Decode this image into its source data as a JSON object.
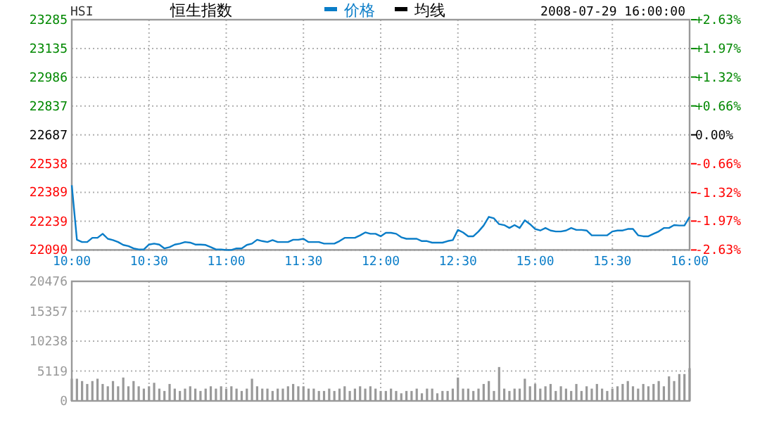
{
  "chart_data": [
    {
      "type": "line",
      "title": "HSI",
      "subtitle": "恒生指数",
      "annotations": [
        "2008-07-29 16:00:00"
      ],
      "legend": "top",
      "grid": true,
      "line_style": "solid",
      "categories": [
        "10:00",
        null,
        null,
        null,
        null,
        null,
        null,
        null,
        null,
        null,
        null,
        null,
        null,
        null,
        null,
        "10:30",
        null,
        null,
        null,
        null,
        null,
        null,
        null,
        null,
        null,
        null,
        null,
        null,
        null,
        null,
        "11:00",
        null,
        null,
        null,
        null,
        null,
        null,
        null,
        null,
        null,
        null,
        null,
        null,
        null,
        null,
        "11:30",
        null,
        null,
        null,
        null,
        null,
        null,
        null,
        null,
        null,
        null,
        null,
        null,
        null,
        null,
        "12:00",
        null,
        null,
        null,
        null,
        null,
        null,
        null,
        null,
        null,
        null,
        null,
        null,
        null,
        null,
        "12:30",
        null,
        null,
        null,
        null,
        null,
        null,
        null,
        null,
        null,
        null,
        null,
        null,
        null,
        null,
        "15:00",
        null,
        null,
        null,
        null,
        null,
        null,
        null,
        null,
        null,
        null,
        null,
        null,
        null,
        null,
        "15:30",
        null,
        null,
        null,
        null,
        null,
        null,
        null,
        null,
        null,
        null,
        null,
        null,
        null,
        null,
        "16:00"
      ],
      "series": [
        {
          "name": "价格",
          "color": "#0a7dc8",
          "values": [
            22426,
            22143,
            22131,
            22131,
            22153,
            22153,
            22174,
            22148,
            22141,
            22131,
            22116,
            22110,
            22098,
            22093,
            22093,
            22118,
            22123,
            22118,
            22098,
            22105,
            22118,
            22123,
            22131,
            22128,
            22118,
            22118,
            22116,
            22105,
            22093,
            22093,
            22090,
            22090,
            22098,
            22098,
            22116,
            22123,
            22143,
            22136,
            22131,
            22141,
            22131,
            22131,
            22131,
            22143,
            22143,
            22148,
            22131,
            22131,
            22131,
            22123,
            22123,
            22123,
            22136,
            22153,
            22153,
            22153,
            22166,
            22181,
            22174,
            22174,
            22161,
            22179,
            22179,
            22174,
            22156,
            22148,
            22148,
            22148,
            22136,
            22136,
            22128,
            22128,
            22128,
            22136,
            22141,
            22194,
            22181,
            22161,
            22161,
            22186,
            22217,
            22262,
            22254,
            22224,
            22219,
            22204,
            22219,
            22204,
            22244,
            22224,
            22199,
            22191,
            22204,
            22191,
            22186,
            22186,
            22191,
            22204,
            22194,
            22194,
            22191,
            22166,
            22166,
            22166,
            22166,
            22186,
            22191,
            22191,
            22199,
            22199,
            22166,
            22161,
            22161,
            22174,
            22186,
            22204,
            22204,
            22219,
            22217,
            22217,
            22262
          ]
        },
        {
          "name": "均线",
          "color": "#000000",
          "values": [
            null,
            null,
            null,
            null,
            null,
            null,
            null,
            null,
            null,
            null,
            null,
            null,
            null,
            null,
            null,
            null,
            null,
            null,
            null,
            null,
            null,
            null,
            null,
            null,
            null,
            null,
            null,
            null,
            null,
            null,
            null,
            null,
            null,
            null,
            null,
            null,
            null,
            null,
            null,
            null,
            null,
            null,
            null,
            null,
            null,
            null,
            null,
            null,
            null,
            null,
            null,
            null,
            null,
            null,
            null,
            null,
            null,
            null,
            null,
            null,
            null,
            null,
            null,
            null,
            null,
            null,
            null,
            null,
            null,
            null,
            null,
            null,
            null,
            null,
            null,
            null,
            null,
            null,
            null,
            null,
            null,
            null,
            null,
            null,
            null,
            null,
            null,
            null,
            null,
            null,
            null,
            null,
            null,
            null,
            null,
            null,
            null,
            null,
            null,
            null,
            null,
            null,
            null,
            null,
            null,
            null,
            null,
            null,
            null,
            null,
            null,
            null,
            null,
            null,
            null,
            null,
            null,
            null,
            null,
            null,
            null
          ]
        }
      ],
      "ylim": [
        22090,
        23285
      ],
      "yticks": [
        22090,
        22239,
        22389,
        22538,
        22687,
        22837,
        22986,
        23135,
        23285
      ],
      "y2lim": [
        -2.63,
        2.63
      ],
      "y2ticks": [
        {
          "value": -2.63,
          "label": "-2.63%"
        },
        {
          "value": -1.97,
          "label": "-1.97%"
        },
        {
          "value": -1.32,
          "label": "-1.32%"
        },
        {
          "value": -0.66,
          "label": "-0.66%"
        },
        {
          "value": 0,
          "label": "0.00%"
        },
        {
          "value": 0.66,
          "label": "+0.66%"
        },
        {
          "value": 1.32,
          "label": "+1.32%"
        },
        {
          "value": 1.97,
          "label": "+1.97%"
        },
        {
          "value": 2.63,
          "label": "+2.63%"
        }
      ]
    },
    {
      "type": "bar",
      "color": "#999999",
      "grid": true,
      "tick_labels": "y",
      "categories": [
        null,
        null,
        null,
        null,
        null,
        null,
        null,
        null,
        null,
        null,
        null,
        null,
        null,
        null,
        null,
        null,
        null,
        null,
        null,
        null,
        null,
        null,
        null,
        null,
        null,
        null,
        null,
        null,
        null,
        null,
        null,
        null,
        null,
        null,
        null,
        null,
        null,
        null,
        null,
        null,
        null,
        null,
        null,
        null,
        null,
        null,
        null,
        null,
        null,
        null,
        null,
        null,
        null,
        null,
        null,
        null,
        null,
        null,
        null,
        null,
        null,
        null,
        null,
        null,
        null,
        null,
        null,
        null,
        null,
        null,
        null,
        null,
        null,
        null,
        null,
        null,
        null,
        null,
        null,
        null,
        null,
        null,
        null,
        null,
        null,
        null,
        null,
        null,
        null,
        null,
        null,
        null,
        null,
        null,
        null,
        null,
        null,
        null,
        null,
        null,
        null,
        null,
        null,
        null,
        null,
        null,
        null,
        null,
        null,
        null,
        null,
        null,
        null,
        null,
        null,
        null,
        null,
        null,
        null,
        null,
        null
      ],
      "values": [
        3800,
        3800,
        3400,
        2900,
        3400,
        3800,
        2900,
        2500,
        3400,
        2500,
        4000,
        2500,
        3400,
        2500,
        2100,
        2500,
        3100,
        2100,
        1700,
        2900,
        2100,
        1700,
        2100,
        2500,
        2100,
        1700,
        2100,
        2500,
        2100,
        2500,
        2100,
        2500,
        2100,
        1700,
        2100,
        3800,
        2500,
        2100,
        2100,
        1700,
        2100,
        2100,
        2500,
        2900,
        2500,
        2500,
        2100,
        2100,
        1700,
        1700,
        2100,
        1700,
        2100,
        2500,
        1700,
        2100,
        2500,
        2100,
        2500,
        2100,
        1700,
        1700,
        2100,
        1700,
        1300,
        1700,
        1700,
        2100,
        1300,
        2100,
        2100,
        1300,
        1700,
        1700,
        2100,
        4000,
        2100,
        2100,
        1700,
        2100,
        2900,
        3400,
        1700,
        5800,
        2100,
        1700,
        2100,
        2100,
        3800,
        2500,
        2900,
        2100,
        2500,
        2900,
        1700,
        2500,
        2100,
        1700,
        2900,
        1700,
        2500,
        2100,
        2900,
        2100,
        1700,
        2100,
        2500,
        2900,
        3400,
        2500,
        2100,
        2900,
        2500,
        2900,
        3400,
        2500,
        4200,
        3400,
        4600,
        4600,
        5600
      ],
      "ylim": [
        0,
        20476
      ],
      "yticks": [
        0,
        5119,
        10238,
        15357,
        20476
      ]
    }
  ]
}
